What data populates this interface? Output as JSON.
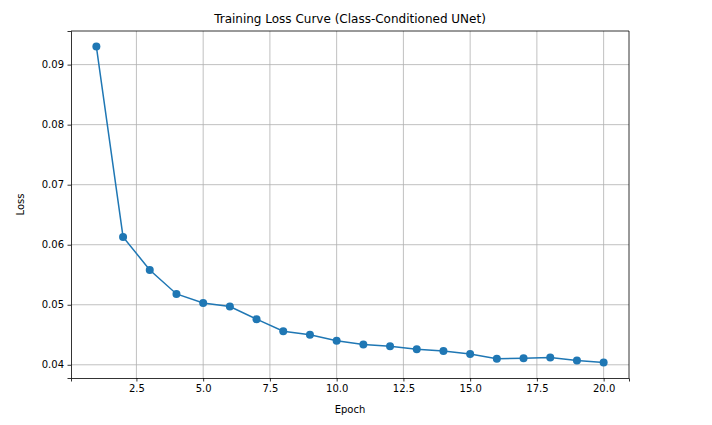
{
  "chart_data": {
    "type": "line",
    "title": "Training Loss Curve (Class-Conditioned UNet)",
    "x_label": "Epoch",
    "y_label": "Loss",
    "x": [
      1,
      2,
      3,
      4,
      5,
      6,
      7,
      8,
      9,
      10,
      11,
      12,
      13,
      14,
      15,
      16,
      17,
      18,
      19,
      20
    ],
    "values": [
      0.093,
      0.0613,
      0.0558,
      0.0518,
      0.0503,
      0.0497,
      0.0476,
      0.0456,
      0.045,
      0.044,
      0.0434,
      0.0431,
      0.0426,
      0.0423,
      0.0418,
      0.041,
      0.0411,
      0.0412,
      0.0407,
      0.0404
    ],
    "color": "#1f77b4",
    "marker": "o",
    "line_style": "solid",
    "xlim": [
      0.05,
      20.95
    ],
    "xticks": [
      2.5,
      {
        "value": 5,
        "label": "5.0"
      },
      7.5,
      {
        "value": 10,
        "label": "10.0"
      },
      12.5,
      {
        "value": 15,
        "label": "15.0"
      },
      17.5,
      {
        "value": 20,
        "label": "20.0"
      }
    ],
    "ylim": [
      0.0378,
      0.0956
    ],
    "yticks": [
      0.04,
      0.05,
      0.06,
      0.07,
      0.08,
      0.09
    ],
    "grid": true
  }
}
